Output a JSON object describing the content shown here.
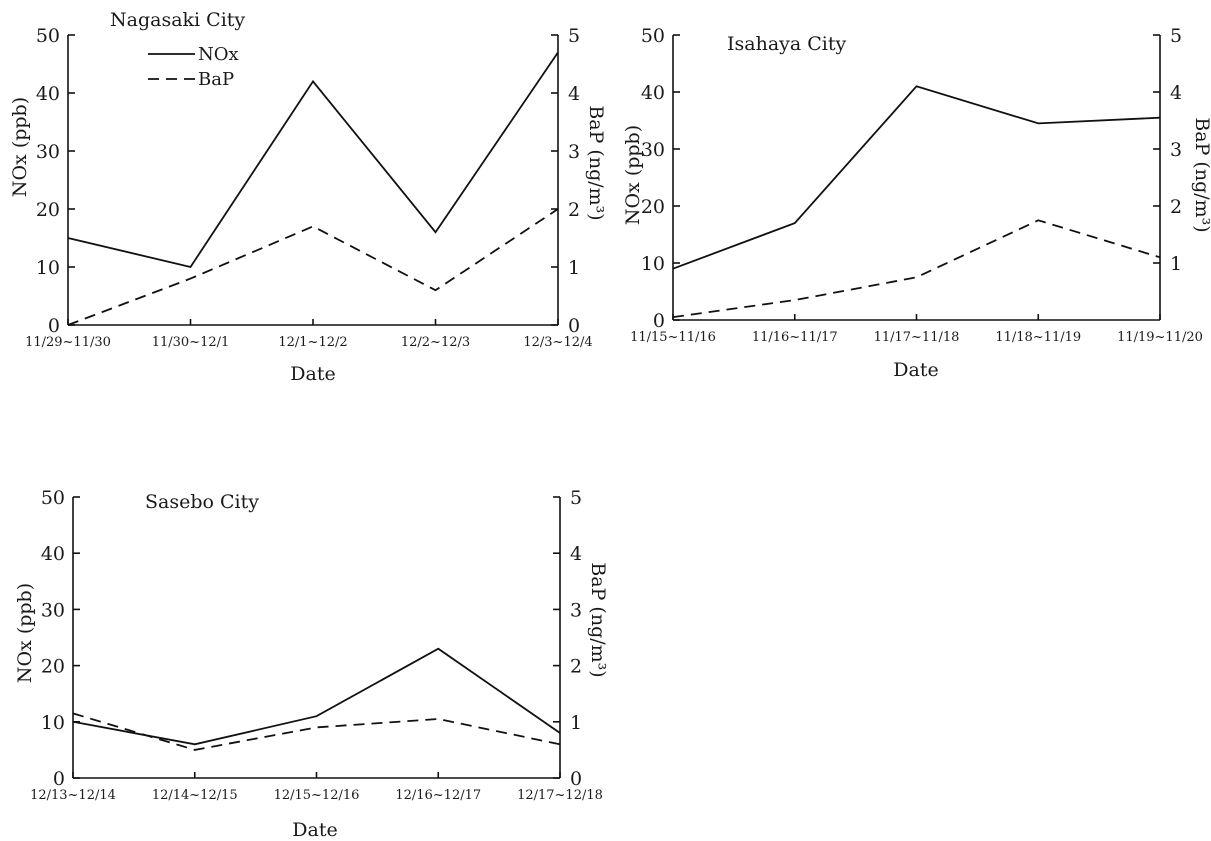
{
  "legend": {
    "nox_label": "NOx",
    "bap_label": "BaP"
  },
  "chart_data": [
    {
      "type": "line",
      "title": "Nagasaki City",
      "xlabel": "Date",
      "ylabel": "NOx (ppb)",
      "y2label": "BaP (ng/m³)",
      "ylim": [
        0,
        50
      ],
      "y2lim": [
        0,
        5
      ],
      "yticks": [
        "0",
        "10",
        "20",
        "30",
        "40",
        "50"
      ],
      "y2ticks": [
        "0",
        "1",
        "2",
        "3",
        "4",
        "5"
      ],
      "categories": [
        "11/29~11/30",
        "11/30~12/1",
        "12/1~12/2",
        "12/2~12/3",
        "12/3~12/4"
      ],
      "series": [
        {
          "name": "NOx",
          "axis": "left",
          "values": [
            15,
            10,
            42,
            16,
            47
          ]
        },
        {
          "name": "BaP",
          "axis": "right",
          "values": [
            0.0,
            0.8,
            1.7,
            0.6,
            2.0
          ]
        }
      ]
    },
    {
      "type": "line",
      "title": "Isahaya City",
      "xlabel": "Date",
      "ylabel": "NOx (ppb)",
      "y2label": "BaP (ng/m³)",
      "ylim": [
        0,
        50
      ],
      "y2lim": [
        0,
        5
      ],
      "yticks": [
        "0",
        "10",
        "20",
        "30",
        "40",
        "50"
      ],
      "y2ticks": [
        "1",
        "2",
        "3",
        "4",
        "5"
      ],
      "categories": [
        "11/15~11/16",
        "11/16~11/17",
        "11/17~11/18",
        "11/18~11/19",
        "11/19~11/20"
      ],
      "series": [
        {
          "name": "NOx",
          "axis": "left",
          "values": [
            9,
            17,
            41,
            34.5,
            35.5
          ]
        },
        {
          "name": "BaP",
          "axis": "right",
          "values": [
            0.05,
            0.35,
            0.75,
            1.75,
            1.1
          ]
        }
      ]
    },
    {
      "type": "line",
      "title": "Sasebo City",
      "xlabel": "Date",
      "ylabel": "NOx (ppb)",
      "y2label": "BaP (ng/m³)",
      "ylim": [
        0,
        50
      ],
      "y2lim": [
        0,
        5
      ],
      "yticks": [
        "0",
        "10",
        "20",
        "30",
        "40",
        "50"
      ],
      "y2ticks": [
        "0",
        "1",
        "2",
        "3",
        "4",
        "5"
      ],
      "categories": [
        "12/13~12/14",
        "12/14~12/15",
        "12/15~12/16",
        "12/16~12/17",
        "12/17~12/18"
      ],
      "series": [
        {
          "name": "NOx",
          "axis": "left",
          "values": [
            10,
            6,
            11,
            23,
            8
          ]
        },
        {
          "name": "BaP",
          "axis": "right",
          "values": [
            1.15,
            0.5,
            0.9,
            1.05,
            0.6
          ]
        }
      ]
    }
  ]
}
